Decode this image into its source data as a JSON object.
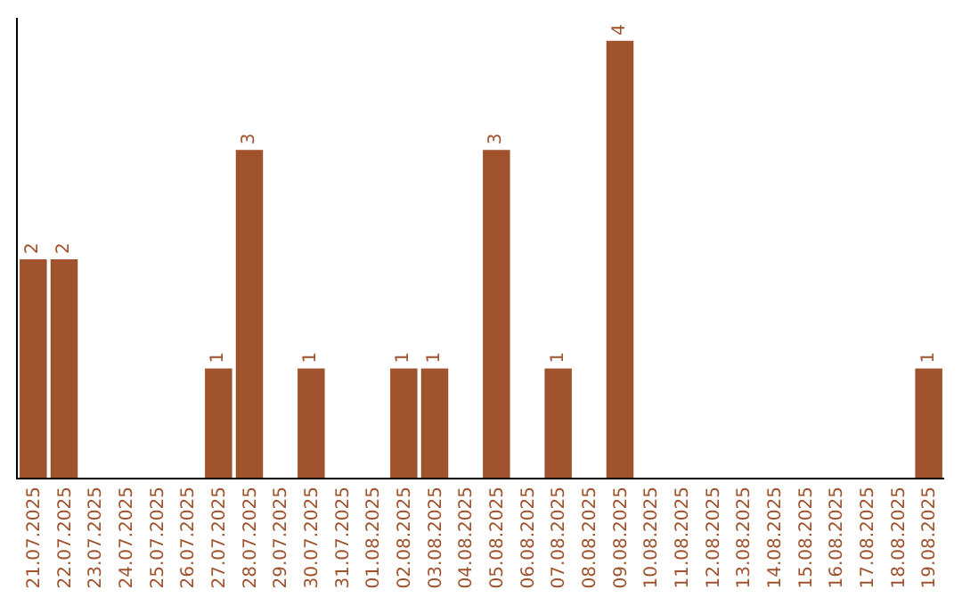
{
  "chart_data": {
    "type": "bar",
    "categories": [
      "21.07.2025",
      "22.07.2025",
      "23.07.2025",
      "24.07.2025",
      "25.07.2025",
      "26.07.2025",
      "27.07.2025",
      "28.07.2025",
      "29.07.2025",
      "30.07.2025",
      "31.07.2025",
      "01.08.2025",
      "02.08.2025",
      "03.08.2025",
      "04.08.2025",
      "05.08.2025",
      "06.08.2025",
      "07.08.2025",
      "08.08.2025",
      "09.08.2025",
      "10.08.2025",
      "11.08.2025",
      "12.08.2025",
      "13.08.2025",
      "14.08.2025",
      "15.08.2025",
      "16.08.2025",
      "17.08.2025",
      "18.08.2025",
      "19.08.2025"
    ],
    "series": [
      {
        "color": "#a0522d",
        "values": [
          2,
          2,
          0,
          0,
          0,
          0,
          1,
          3,
          0,
          1,
          0,
          0,
          1,
          1,
          0,
          3,
          0,
          1,
          0,
          4,
          0,
          0,
          0,
          0,
          0,
          0,
          0,
          0,
          0,
          1
        ],
        "value_labels": [
          "2",
          "2",
          null,
          null,
          null,
          null,
          "1",
          "3",
          null,
          "1",
          null,
          null,
          "1",
          "1",
          null,
          "3",
          null,
          "1",
          null,
          "4",
          null,
          null,
          null,
          null,
          null,
          null,
          null,
          null,
          null,
          "1"
        ]
      }
    ],
    "tick_labels": "x"
  }
}
